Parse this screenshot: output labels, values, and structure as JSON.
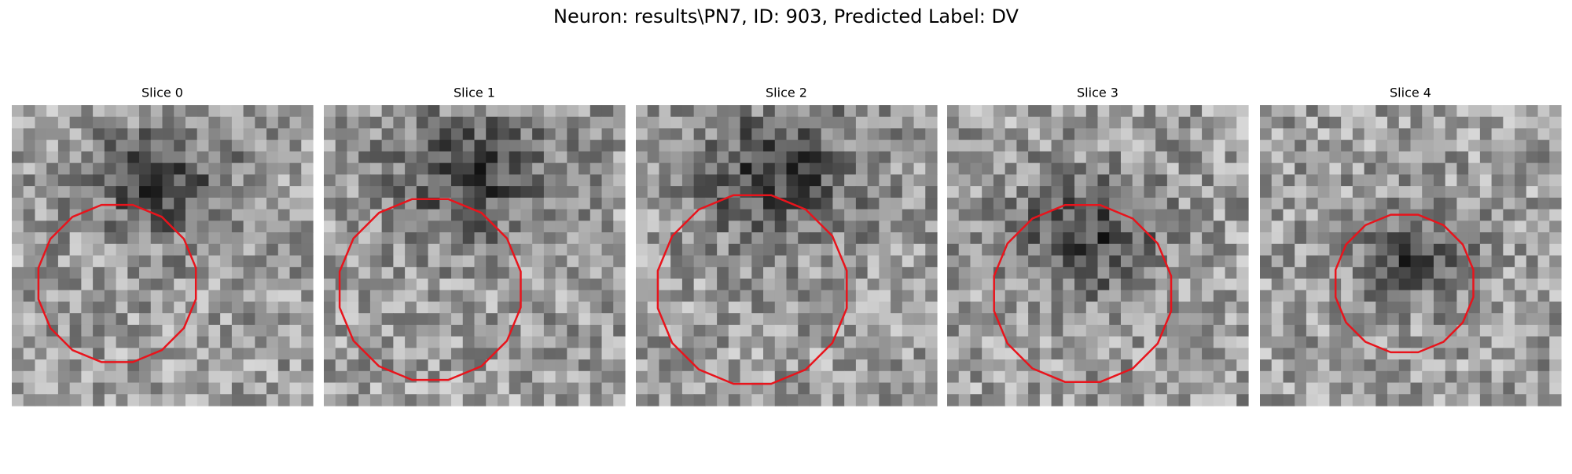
{
  "title": "Neuron: results\\PN7, ID: 903, Predicted Label: DV",
  "panels": [
    {
      "title": "Slice 0"
    },
    {
      "title": "Slice 1"
    },
    {
      "title": "Slice 2"
    },
    {
      "title": "Slice 3"
    },
    {
      "title": "Slice 4"
    }
  ]
}
